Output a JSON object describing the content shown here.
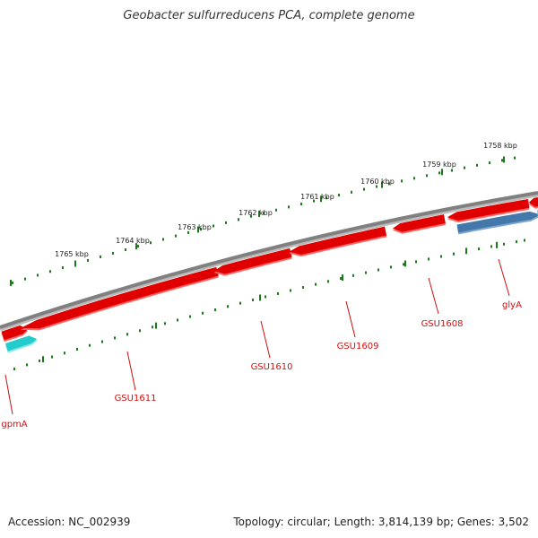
{
  "title": "Geobacter sulfurreducens PCA, complete genome",
  "accession": "Accession: NC_002939",
  "summary": "Topology: circular; Length: 3,814,139 bp; Genes: 3,502",
  "colors": {
    "backbone": "#808080",
    "gene_forward": "#e00000",
    "gene_forward_shadow": "#ff6666",
    "gene_reverse_rna": "#4477aa",
    "gene_cyan": "#22cccc",
    "ticks": "#1a7a1a",
    "label": "#cc1111"
  },
  "scale": {
    "labels": [
      "1758 kbp",
      "1759 kbp",
      "1760 kbp",
      "1761 kbp",
      "1762 kbp",
      "1763 kbp",
      "1764 kbp",
      "1765 kbp"
    ]
  },
  "genes": [
    {
      "label": "gpmA"
    },
    {
      "label": "GSU1611"
    },
    {
      "label": "GSU1610"
    },
    {
      "label": "GSU1609"
    },
    {
      "label": "GSU1608"
    },
    {
      "label": "glyA"
    }
  ]
}
